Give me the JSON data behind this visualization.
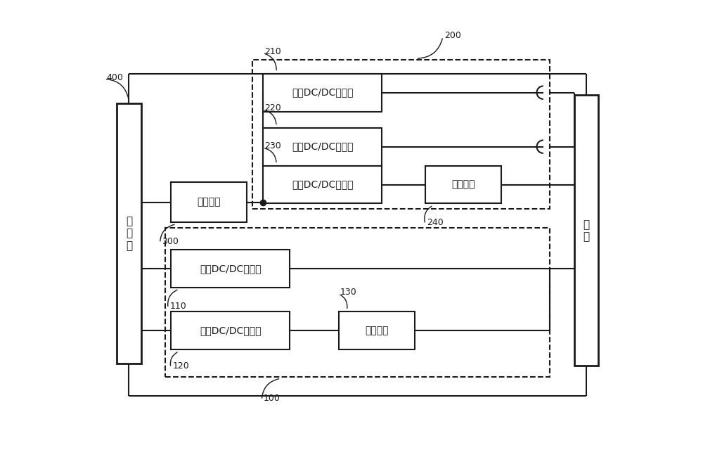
{
  "bg_color": "#ffffff",
  "line_color": "#1a1a1a",
  "labels": {
    "power_board": "电\n源\n板",
    "main_board": "主\n板",
    "switch1": "第一开关",
    "switch2": "第二开关",
    "switch3": "第三开关",
    "dc1": "第一DC/DC变换器",
    "dc2": "第二DC/DC变换器",
    "dc3": "第三DC/DC变换器",
    "dc4": "第四DC/DC变换器",
    "dc5": "第五DC/DC变换器"
  },
  "annotations": {
    "n100": "100",
    "n110": "110",
    "n120": "120",
    "n130": "130",
    "n200": "200",
    "n210": "210",
    "n220": "220",
    "n230": "230",
    "n240": "240",
    "n300": "300",
    "n400": "400"
  }
}
